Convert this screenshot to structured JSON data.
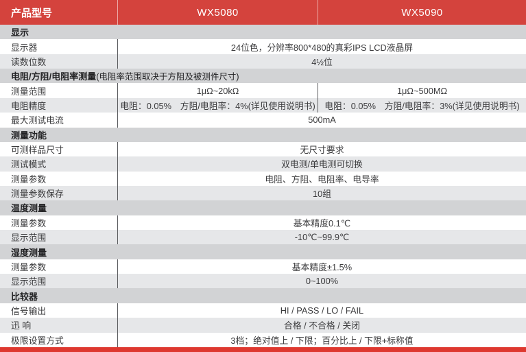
{
  "colors": {
    "header_red": "#d4433d",
    "bottom_red": "#de382f",
    "section_header_bg": "#d2d3d5",
    "alt_row_bg": "#e6e7e9",
    "divider": "#5a5b5e",
    "header_text": "#ffffff",
    "body_text": "#3b3b3d"
  },
  "header": {
    "col1": "产品型号",
    "col2": "WX5080",
    "col3": "WX5090"
  },
  "sections": [
    {
      "title": "显示",
      "note": "",
      "rows": [
        {
          "label": "显示器",
          "value": "24位色，分辨率800*480的真彩IPS LCD液晶屏"
        },
        {
          "label": "读数位数",
          "value": "4½位"
        }
      ]
    },
    {
      "title": "电阻/方阻/电阻率测量",
      "note": "(电阻率范围取决于方阻及被测件尺寸)",
      "rows": [
        {
          "label": "测量范围",
          "values": [
            "1μΩ~20kΩ",
            "1μΩ~500MΩ"
          ]
        },
        {
          "label": "电阻精度",
          "values": [
            "电阻：0.05%　方阻/电阻率：4%(详见使用说明书)",
            "电阻：0.05%　方阻/电阻率：3%(详见使用说明书)"
          ]
        },
        {
          "label": "最大测试电流",
          "value": "500mA"
        }
      ]
    },
    {
      "title": "测量功能",
      "note": "",
      "rows": [
        {
          "label": "可测样品尺寸",
          "value": "无尺寸要求"
        },
        {
          "label": "测试模式",
          "value": "双电测/单电测可切换"
        },
        {
          "label": "测量参数",
          "value": "电阻、方阻、电阻率、电导率"
        },
        {
          "label": "测量参数保存",
          "value": "10组"
        }
      ]
    },
    {
      "title": "温度测量",
      "note": "",
      "rows": [
        {
          "label": "测量参数",
          "value": "基本精度0.1℃"
        },
        {
          "label": "显示范围",
          "value": "-10℃~99.9℃"
        }
      ]
    },
    {
      "title": "湿度测量",
      "note": "",
      "rows": [
        {
          "label": "测量参数",
          "value": "基本精度±1.5%"
        },
        {
          "label": "显示范围",
          "value": "0~100%"
        }
      ]
    },
    {
      "title": "比较器",
      "note": "",
      "rows": [
        {
          "label": "信号输出",
          "value": "HI / PASS / LO / FAIL"
        },
        {
          "label": "迅 响",
          "value": "合格 / 不合格 / 关闭"
        },
        {
          "label": "极限设置方式",
          "value": "3档；绝对值上 / 下限；百分比上 / 下限+标称值"
        }
      ]
    }
  ]
}
